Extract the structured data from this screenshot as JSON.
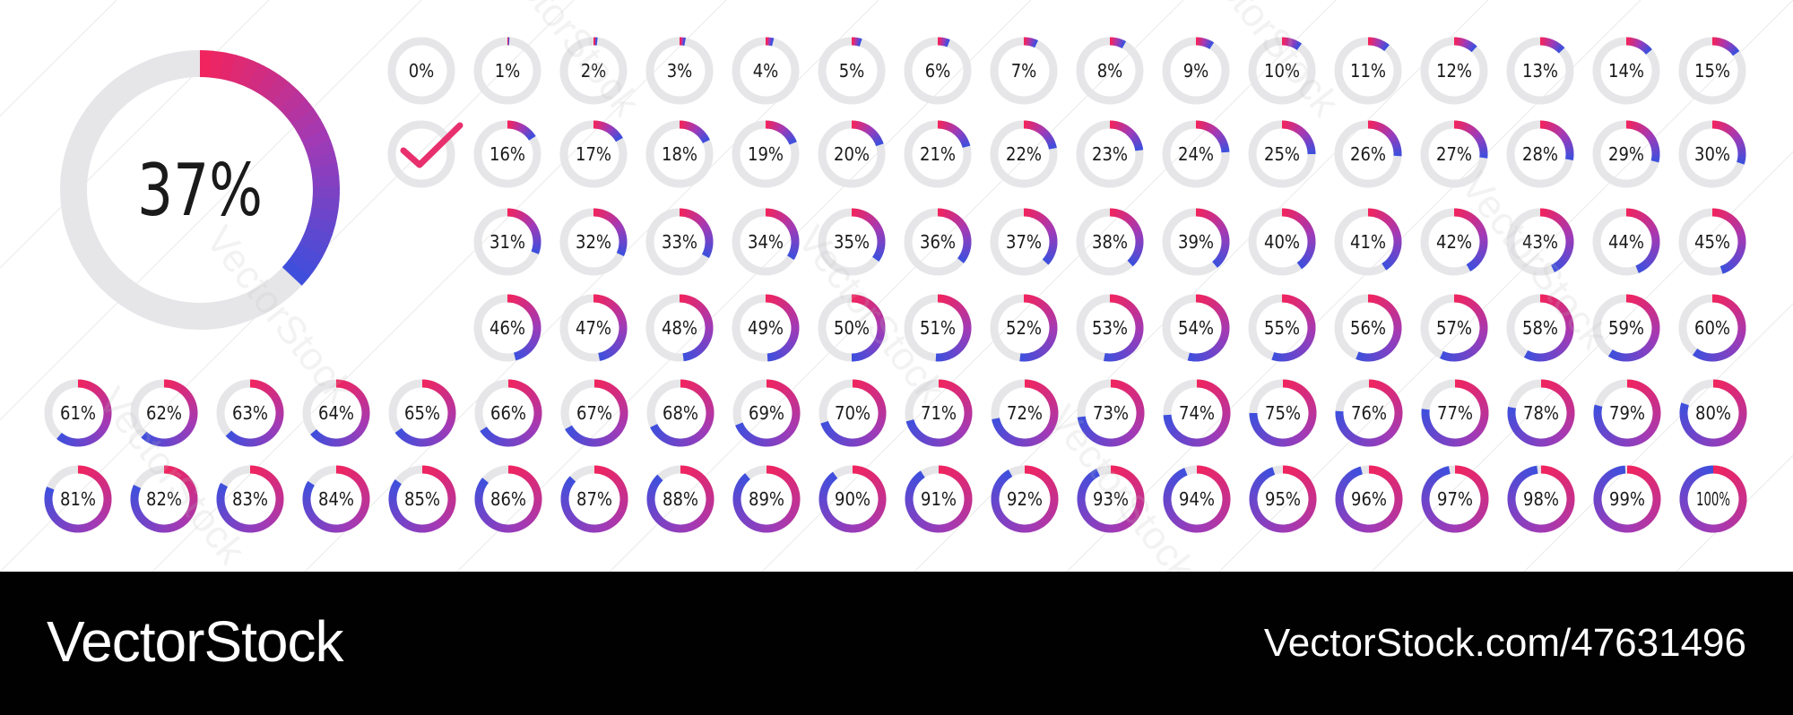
{
  "featured": {
    "value": 37,
    "label": "37%"
  },
  "checkmark_icon": "check-icon",
  "colors": {
    "gradient_start": "#f0245f",
    "gradient_mid": "#a23ab5",
    "gradient_end": "#3f4fdc",
    "track": "#e6e5e8",
    "check": "#e8306e",
    "label": "#1a1a1a",
    "footer_bg": "#010101",
    "footer_text": "#ffffff"
  },
  "watermark_text": "VectorStock",
  "footer": {
    "brand": "VectorStock",
    "url": "VectorStock.com/47631496"
  },
  "percent_values": [
    0,
    1,
    2,
    3,
    4,
    5,
    6,
    7,
    8,
    9,
    10,
    11,
    12,
    13,
    14,
    15,
    16,
    17,
    18,
    19,
    20,
    21,
    22,
    23,
    24,
    25,
    26,
    27,
    28,
    29,
    30,
    31,
    32,
    33,
    34,
    35,
    36,
    37,
    38,
    39,
    40,
    41,
    42,
    43,
    44,
    45,
    46,
    47,
    48,
    49,
    50,
    51,
    52,
    53,
    54,
    55,
    56,
    57,
    58,
    59,
    60,
    61,
    62,
    63,
    64,
    65,
    66,
    67,
    68,
    69,
    70,
    71,
    72,
    73,
    74,
    75,
    76,
    77,
    78,
    79,
    80,
    81,
    82,
    83,
    84,
    85,
    86,
    87,
    88,
    89,
    90,
    91,
    92,
    93,
    94,
    95,
    96,
    97,
    98,
    99,
    100
  ],
  "percent_labels": [
    "0%",
    "1%",
    "2%",
    "3%",
    "4%",
    "5%",
    "6%",
    "7%",
    "8%",
    "9%",
    "10%",
    "11%",
    "12%",
    "13%",
    "14%",
    "15%",
    "16%",
    "17%",
    "18%",
    "19%",
    "20%",
    "21%",
    "22%",
    "23%",
    "24%",
    "25%",
    "26%",
    "27%",
    "28%",
    "29%",
    "30%",
    "31%",
    "32%",
    "33%",
    "34%",
    "35%",
    "36%",
    "37%",
    "38%",
    "39%",
    "40%",
    "41%",
    "42%",
    "43%",
    "44%",
    "45%",
    "46%",
    "47%",
    "48%",
    "49%",
    "50%",
    "51%",
    "52%",
    "53%",
    "54%",
    "55%",
    "56%",
    "57%",
    "58%",
    "59%",
    "60%",
    "61%",
    "62%",
    "63%",
    "64%",
    "65%",
    "66%",
    "67%",
    "68%",
    "69%",
    "70%",
    "71%",
    "72%",
    "73%",
    "74%",
    "75%",
    "76%",
    "77%",
    "78%",
    "79%",
    "80%",
    "81%",
    "82%",
    "83%",
    "84%",
    "85%",
    "86%",
    "87%",
    "88%",
    "89%",
    "90%",
    "91%",
    "92%",
    "93%",
    "94%",
    "95%",
    "96%",
    "97%",
    "98%",
    "99%",
    "100%"
  ]
}
